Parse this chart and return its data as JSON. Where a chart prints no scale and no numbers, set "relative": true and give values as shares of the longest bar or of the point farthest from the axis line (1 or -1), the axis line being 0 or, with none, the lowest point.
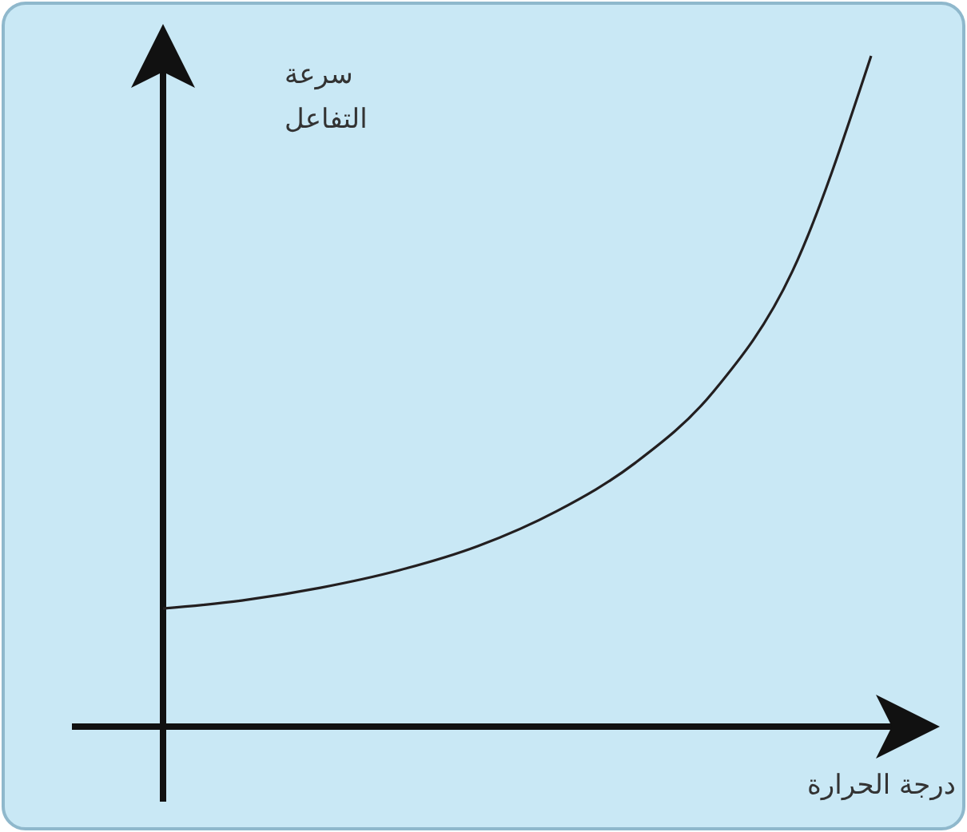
{
  "chart_data": {
    "type": "line",
    "relative": true,
    "xlabel": "درجة الحرارة",
    "ylabel": "سرعة التفاعل",
    "categories": [
      null,
      null,
      null,
      null,
      null,
      null,
      null,
      null,
      null,
      null
    ],
    "series": [
      {
        "color": "#231f20",
        "values": [
          0.176,
          0.188,
          0.207,
          0.233,
          0.269,
          0.321,
          0.393,
          0.5,
          0.679,
          1
        ]
      }
    ],
    "marker": "none",
    "line_style": "solid"
  }
}
